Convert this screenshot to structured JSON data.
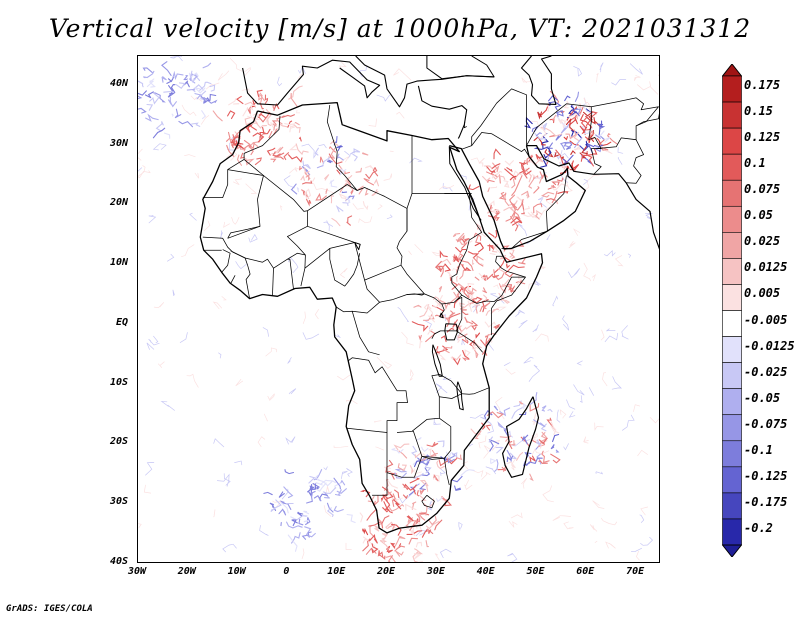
{
  "chart_data": {
    "type": "heatmap",
    "title": "Vertical velocity [m/s] at 1000hPa, VT: 2021031312",
    "variable": "vertical velocity",
    "units": "m/s",
    "level": "1000hPa",
    "valid_time": "2021031312",
    "x_range": [
      -30,
      75
    ],
    "y_range": [
      -40,
      45
    ],
    "x_ticks": [
      {
        "value": -30,
        "label": "30W"
      },
      {
        "value": -20,
        "label": "20W"
      },
      {
        "value": -10,
        "label": "10W"
      },
      {
        "value": 0,
        "label": "0"
      },
      {
        "value": 10,
        "label": "10E"
      },
      {
        "value": 20,
        "label": "20E"
      },
      {
        "value": 30,
        "label": "30E"
      },
      {
        "value": 40,
        "label": "40E"
      },
      {
        "value": 50,
        "label": "50E"
      },
      {
        "value": 60,
        "label": "60E"
      },
      {
        "value": 70,
        "label": "70E"
      }
    ],
    "y_ticks": [
      {
        "value": 40,
        "label": "40N"
      },
      {
        "value": 30,
        "label": "30N"
      },
      {
        "value": 20,
        "label": "20N"
      },
      {
        "value": 10,
        "label": "10N"
      },
      {
        "value": 0,
        "label": "EQ"
      },
      {
        "value": -10,
        "label": "10S"
      },
      {
        "value": -20,
        "label": "20S"
      },
      {
        "value": -30,
        "label": "30S"
      },
      {
        "value": -40,
        "label": "40S"
      }
    ],
    "colorbar": {
      "levels": [
        {
          "label": "0.175",
          "color": "#b41e1e"
        },
        {
          "label": "0.15",
          "color": "#c83232"
        },
        {
          "label": "0.125",
          "color": "#dc4646"
        },
        {
          "label": "0.1",
          "color": "#e25a5a"
        },
        {
          "label": "0.075",
          "color": "#e67373"
        },
        {
          "label": "0.05",
          "color": "#ec8c8c"
        },
        {
          "label": "0.025",
          "color": "#f0a5a5"
        },
        {
          "label": "0.0125",
          "color": "#f6c3c3"
        },
        {
          "label": "0.005",
          "color": "#fbe1e1"
        },
        {
          "label": "-0.005",
          "color": "#ffffff"
        },
        {
          "label": "-0.0125",
          "color": "#e1e1fb"
        },
        {
          "label": "-0.025",
          "color": "#c8c8f5"
        },
        {
          "label": "-0.05",
          "color": "#afafef"
        },
        {
          "label": "-0.075",
          "color": "#9696e6"
        },
        {
          "label": "-0.1",
          "color": "#7d7ddc"
        },
        {
          "label": "-0.125",
          "color": "#6464d2"
        },
        {
          "label": "-0.175",
          "color": "#4646be"
        },
        {
          "label": "-0.2",
          "color": "#2828aa"
        }
      ],
      "top_extension_color": "#a01414",
      "bottom_extension_color": "#1e1e96"
    },
    "regions": [
      {
        "name": "iran-afghanistan",
        "sign": "mixed-strong",
        "center": [
          57,
          32
        ]
      },
      {
        "name": "arabian-peninsula",
        "sign": "positive",
        "center": [
          46,
          23
        ]
      },
      {
        "name": "ethiopian-highlands",
        "sign": "positive",
        "center": [
          39,
          10
        ]
      },
      {
        "name": "east-african-rift",
        "sign": "positive",
        "center": [
          34,
          0
        ]
      },
      {
        "name": "sahara-mountains",
        "sign": "mixed",
        "center": [
          10,
          24
        ]
      },
      {
        "name": "morocco-atlas",
        "sign": "positive",
        "center": [
          -5,
          33
        ]
      },
      {
        "name": "southern-africa",
        "sign": "mixed",
        "center": [
          27,
          -25
        ]
      },
      {
        "name": "south-africa-coast",
        "sign": "positive",
        "center": [
          22,
          -33
        ]
      },
      {
        "name": "madagascar",
        "sign": "mixed",
        "center": [
          47,
          -19
        ]
      },
      {
        "name": "north-atlantic",
        "sign": "negative",
        "center": [
          -22,
          38
        ]
      },
      {
        "name": "south-atlantic-coast",
        "sign": "negative",
        "center": [
          5,
          -30
        ]
      }
    ]
  },
  "footer": "GrADS: IGES/COLA"
}
